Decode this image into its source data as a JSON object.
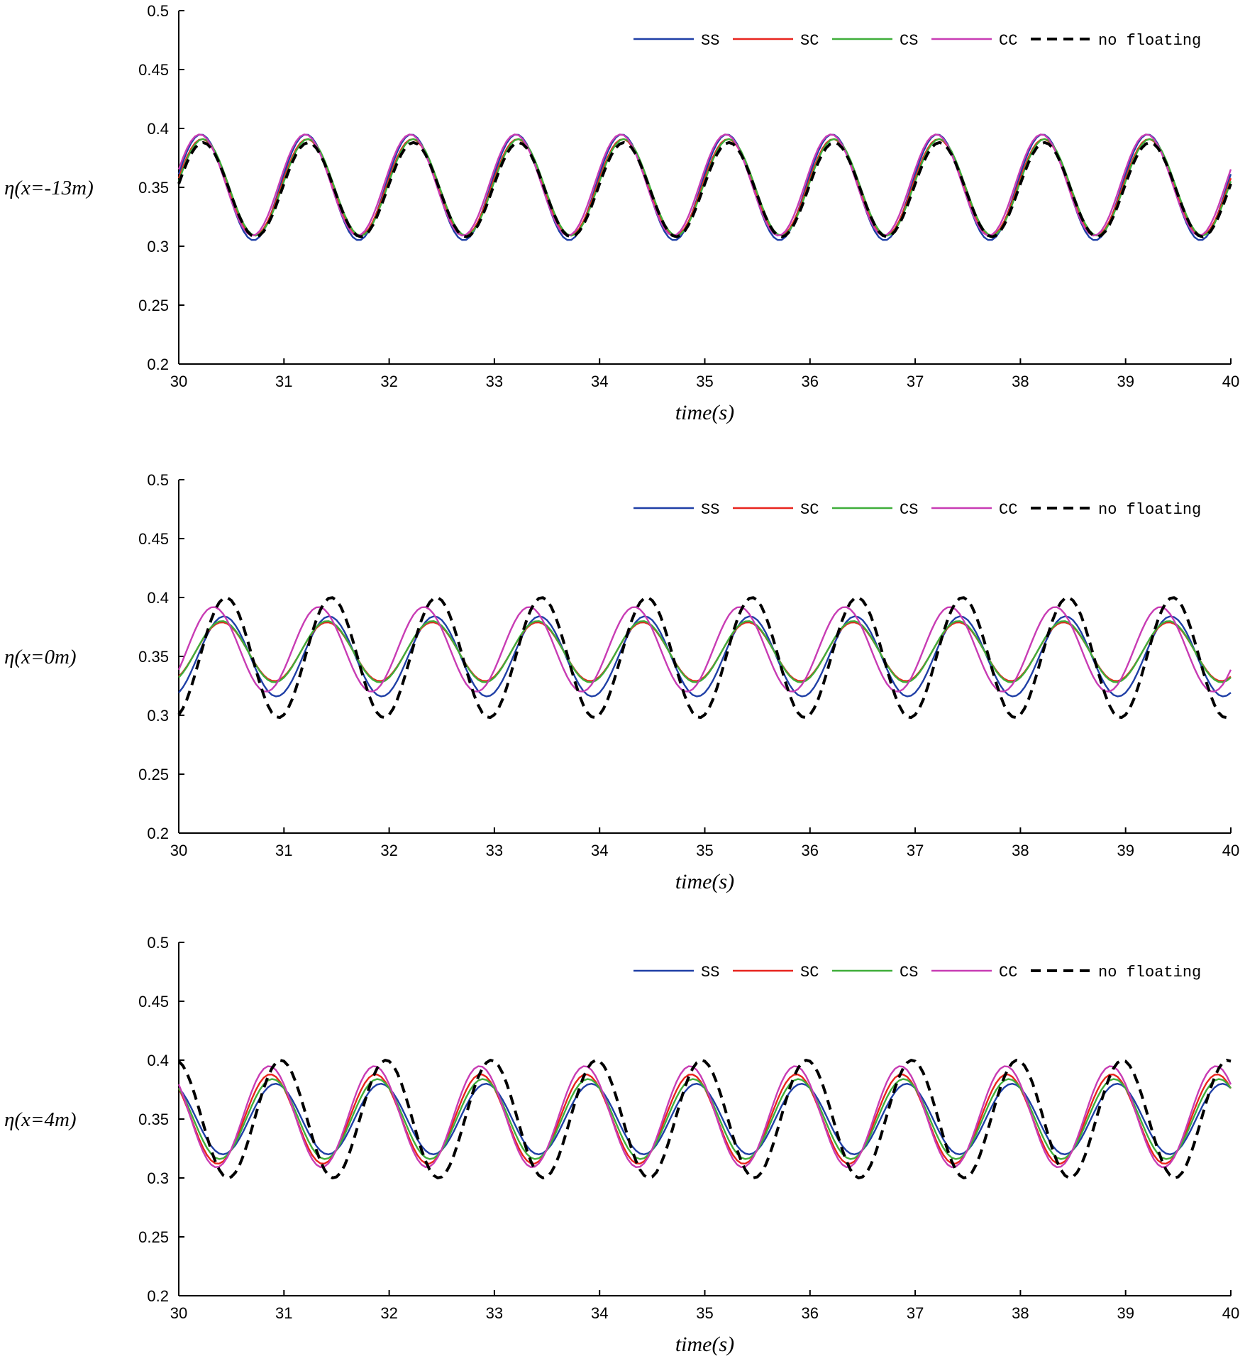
{
  "chart_data": [
    {
      "type": "line",
      "ylabel": "η(x=-13m)",
      "xlabel": "time(s)",
      "xlim": [
        30,
        40
      ],
      "ylim": [
        0.2,
        0.5
      ],
      "xticks": [
        "30",
        "31",
        "32",
        "33",
        "34",
        "35",
        "36",
        "37",
        "38",
        "39",
        "40"
      ],
      "yticks": [
        "0.2",
        "0.25",
        "0.3",
        "0.35",
        "0.4",
        "0.45",
        "0.5"
      ],
      "legend": [
        "SS",
        "SC",
        "CS",
        "CC",
        "no floating"
      ],
      "legend_position": "top-right",
      "series": [
        {
          "name": "SS",
          "color": "#1f3fa6",
          "dash": "solid",
          "mean": 0.35,
          "amp": 0.045,
          "phase": 0.21
        },
        {
          "name": "SC",
          "color": "#e8241e",
          "dash": "solid",
          "mean": 0.35,
          "amp": 0.041,
          "phase": 0.22
        },
        {
          "name": "CS",
          "color": "#3fae3a",
          "dash": "solid",
          "mean": 0.35,
          "amp": 0.041,
          "phase": 0.23
        },
        {
          "name": "CC",
          "color": "#c83cb4",
          "dash": "solid",
          "mean": 0.352,
          "amp": 0.043,
          "phase": 0.2
        },
        {
          "name": "no floating",
          "color": "#000000",
          "dash": "dashed",
          "mean": 0.348,
          "amp": 0.04,
          "phase": 0.23
        }
      ]
    },
    {
      "type": "line",
      "ylabel": "η(x=0m)",
      "xlabel": "time(s)",
      "xlim": [
        30,
        40
      ],
      "ylim": [
        0.2,
        0.5
      ],
      "xticks": [
        "30",
        "31",
        "32",
        "33",
        "34",
        "35",
        "36",
        "37",
        "38",
        "39",
        "40"
      ],
      "yticks": [
        "0.2",
        "0.25",
        "0.3",
        "0.35",
        "0.4",
        "0.45",
        "0.5"
      ],
      "legend": [
        "SS",
        "SC",
        "CS",
        "CC",
        "no floating"
      ],
      "legend_position": "top-right",
      "series": [
        {
          "name": "SS",
          "color": "#1f3fa6",
          "dash": "solid",
          "mean": 0.35,
          "amp": 0.034,
          "phase": 0.43
        },
        {
          "name": "SC",
          "color": "#e8241e",
          "dash": "solid",
          "mean": 0.354,
          "amp": 0.025,
          "phase": 0.41
        },
        {
          "name": "CS",
          "color": "#3fae3a",
          "dash": "solid",
          "mean": 0.354,
          "amp": 0.026,
          "phase": 0.41
        },
        {
          "name": "CC",
          "color": "#c83cb4",
          "dash": "solid",
          "mean": 0.356,
          "amp": 0.036,
          "phase": 0.33
        },
        {
          "name": "no floating",
          "color": "#000000",
          "dash": "dashed",
          "mean": 0.349,
          "amp": 0.051,
          "phase": 0.45
        }
      ]
    },
    {
      "type": "line",
      "ylabel": "η(x=4m)",
      "xlabel": "time(s)",
      "xlim": [
        30,
        40
      ],
      "ylim": [
        0.2,
        0.5
      ],
      "xticks": [
        "30",
        "31",
        "32",
        "33",
        "34",
        "35",
        "36",
        "37",
        "38",
        "39",
        "40"
      ],
      "yticks": [
        "0.2",
        "0.25",
        "0.3",
        "0.35",
        "0.4",
        "0.45",
        "0.5"
      ],
      "legend": [
        "SS",
        "SC",
        "CS",
        "CC",
        "no floating"
      ],
      "legend_position": "top-right",
      "series": [
        {
          "name": "SS",
          "color": "#1f3fa6",
          "dash": "solid",
          "mean": 0.35,
          "amp": 0.03,
          "phase": 0.92
        },
        {
          "name": "SC",
          "color": "#e8241e",
          "dash": "solid",
          "mean": 0.35,
          "amp": 0.038,
          "phase": 0.87
        },
        {
          "name": "CS",
          "color": "#3fae3a",
          "dash": "solid",
          "mean": 0.35,
          "amp": 0.034,
          "phase": 0.89
        },
        {
          "name": "CC",
          "color": "#c83cb4",
          "dash": "solid",
          "mean": 0.352,
          "amp": 0.043,
          "phase": 0.86
        },
        {
          "name": "no floating",
          "color": "#000000",
          "dash": "dashed",
          "mean": 0.35,
          "amp": 0.05,
          "phase": 0.97
        }
      ]
    }
  ]
}
